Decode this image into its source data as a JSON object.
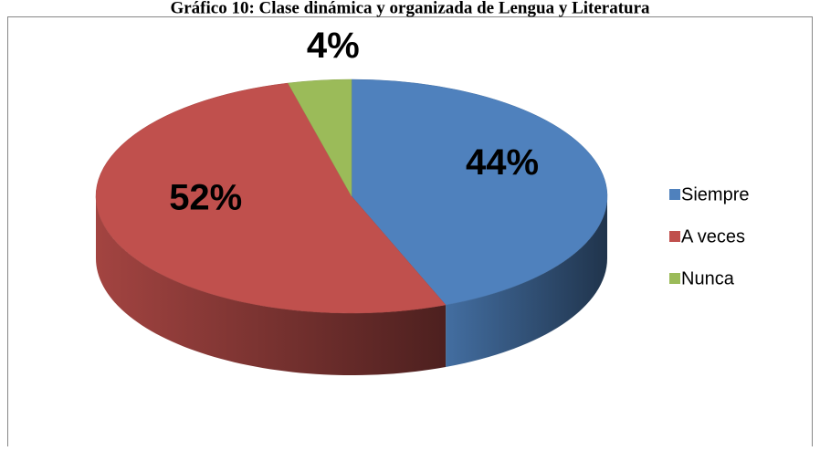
{
  "chart_data": {
    "type": "pie",
    "title": "Gráfico 10: Clase dinámica y organizada de Lengua y Literatura",
    "series": [
      {
        "name": "Siempre",
        "color": "#4f81bd"
      },
      {
        "name": "A veces",
        "color": "#c0504d"
      },
      {
        "name": "Nunca",
        "color": "#9bbb59"
      }
    ],
    "categories": [
      "Siempre",
      "A veces",
      "Nunca"
    ],
    "values": [
      44,
      52,
      4
    ],
    "value_labels": [
      "44%",
      "52%",
      "4%"
    ],
    "legend": "right"
  }
}
